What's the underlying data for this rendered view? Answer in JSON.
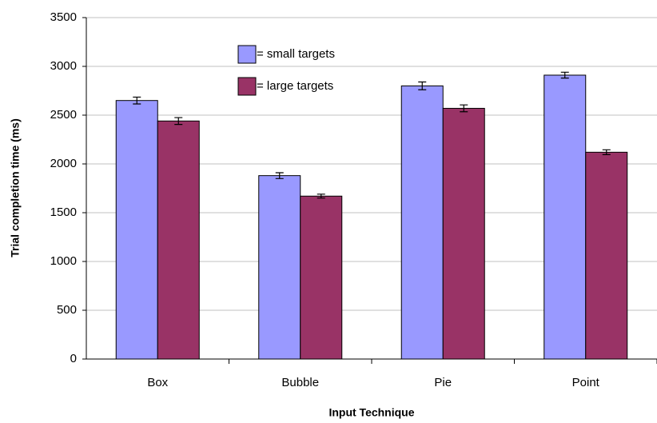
{
  "chart_data": {
    "type": "bar",
    "xlabel": "Input Technique",
    "ylabel": "Trial completion time (ms)",
    "categories": [
      "Box",
      "Bubble",
      "Pie",
      "Point"
    ],
    "series": [
      {
        "name": "= small targets",
        "color": "#9999ff",
        "values": [
          2650,
          1880,
          2800,
          2910
        ],
        "errors": [
          35,
          30,
          40,
          30
        ]
      },
      {
        "name": "= large targets",
        "color": "#993366",
        "values": [
          2440,
          1670,
          2570,
          2120
        ],
        "errors": [
          35,
          20,
          35,
          25
        ]
      }
    ],
    "ylim": [
      0,
      3500
    ],
    "yticks": [
      0,
      500,
      1000,
      1500,
      2000,
      2500,
      3000,
      3500
    ],
    "grid": true,
    "legend": "upper center"
  }
}
